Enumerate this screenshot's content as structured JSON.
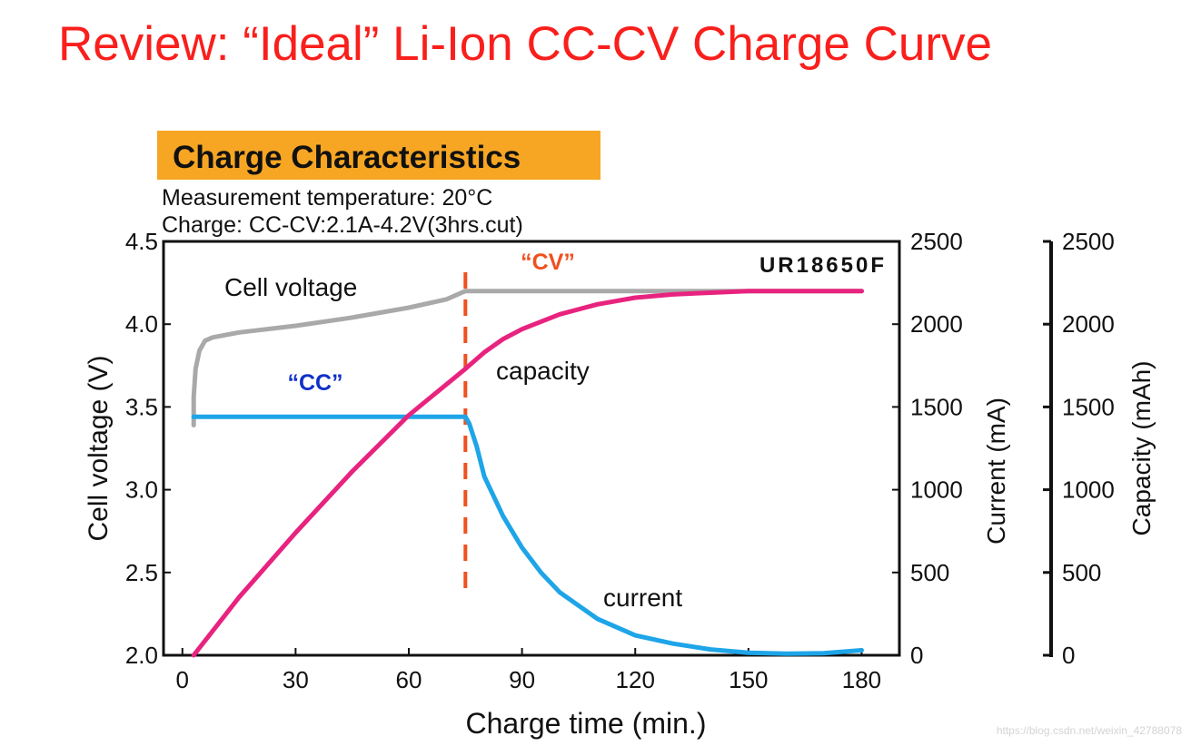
{
  "page": {
    "title": "Review:  “Ideal” Li-Ion CC-CV Charge Curve",
    "title_color": "#f91f1c",
    "watermark": "https://blog.csdn.net/weixin_42788078",
    "watermark_color": "#d4d4d4"
  },
  "chart_data": {
    "type": "line",
    "title": "Charge Characteristics",
    "title_bg_color": "#f6a623",
    "subtitle_lines": [
      "Measurement temperature: 20°C",
      "Charge: CC-CV:2.1A-4.2V(3hrs.cut)"
    ],
    "model_label": "UR18650F",
    "xlabel": "Charge time (min.)",
    "xlim": [
      -5,
      190
    ],
    "xticks": [
      0,
      30,
      60,
      90,
      120,
      150,
      180
    ],
    "axes": {
      "voltage": {
        "label": "Cell voltage (V)",
        "ylim": [
          2.0,
          4.5
        ],
        "ticks": [
          "2.0",
          "2.5",
          "3.0",
          "3.5",
          "4.0",
          "4.5"
        ]
      },
      "current": {
        "label": "Current (mA)",
        "ylim": [
          0,
          2500
        ],
        "ticks": [
          "0",
          "500",
          "1000",
          "1500",
          "2000",
          "2500"
        ]
      },
      "capacity": {
        "label": "Capacity (mAh)",
        "ylim": [
          0,
          2500
        ],
        "ticks": [
          "0",
          "500",
          "1000",
          "1500",
          "2000",
          "2500"
        ]
      }
    },
    "series": [
      {
        "name": "Cell voltage",
        "axis": "voltage",
        "color": "#a9a9a9",
        "x": [
          3,
          3,
          3.5,
          4.5,
          6,
          8,
          15,
          30,
          45,
          60,
          70,
          75,
          80,
          100,
          130,
          160,
          180
        ],
        "y": [
          3.39,
          3.56,
          3.73,
          3.84,
          3.9,
          3.92,
          3.95,
          3.99,
          4.04,
          4.1,
          4.15,
          4.2,
          4.2,
          4.2,
          4.2,
          4.2,
          4.2
        ]
      },
      {
        "name": "current",
        "axis": "current",
        "color": "#1ea5e8",
        "x": [
          3,
          75,
          76,
          78,
          80,
          85,
          90,
          95,
          100,
          110,
          120,
          130,
          140,
          150,
          160,
          170,
          180
        ],
        "y": [
          1440,
          1440,
          1400,
          1260,
          1080,
          840,
          650,
          500,
          380,
          220,
          120,
          70,
          35,
          15,
          10,
          12,
          30
        ]
      },
      {
        "name": "capacity",
        "axis": "capacity",
        "color": "#e8237f",
        "x": [
          3,
          15,
          30,
          45,
          60,
          75,
          80,
          85,
          90,
          100,
          110,
          120,
          130,
          140,
          150,
          160,
          170,
          180
        ],
        "y": [
          0,
          350,
          740,
          1110,
          1450,
          1730,
          1830,
          1910,
          1970,
          2060,
          2120,
          2160,
          2180,
          2190,
          2200,
          2200,
          2200,
          2200
        ]
      }
    ],
    "annotations": {
      "cv_label": "“CV”",
      "cv_color": "#f0501e",
      "cc_label": "“CC”",
      "cc_color": "#1030c8",
      "cv_switch_time": 75,
      "divider_color": "#f0501e",
      "voltage_label": "Cell voltage",
      "capacity_label": "capacity",
      "current_label": "current"
    }
  }
}
